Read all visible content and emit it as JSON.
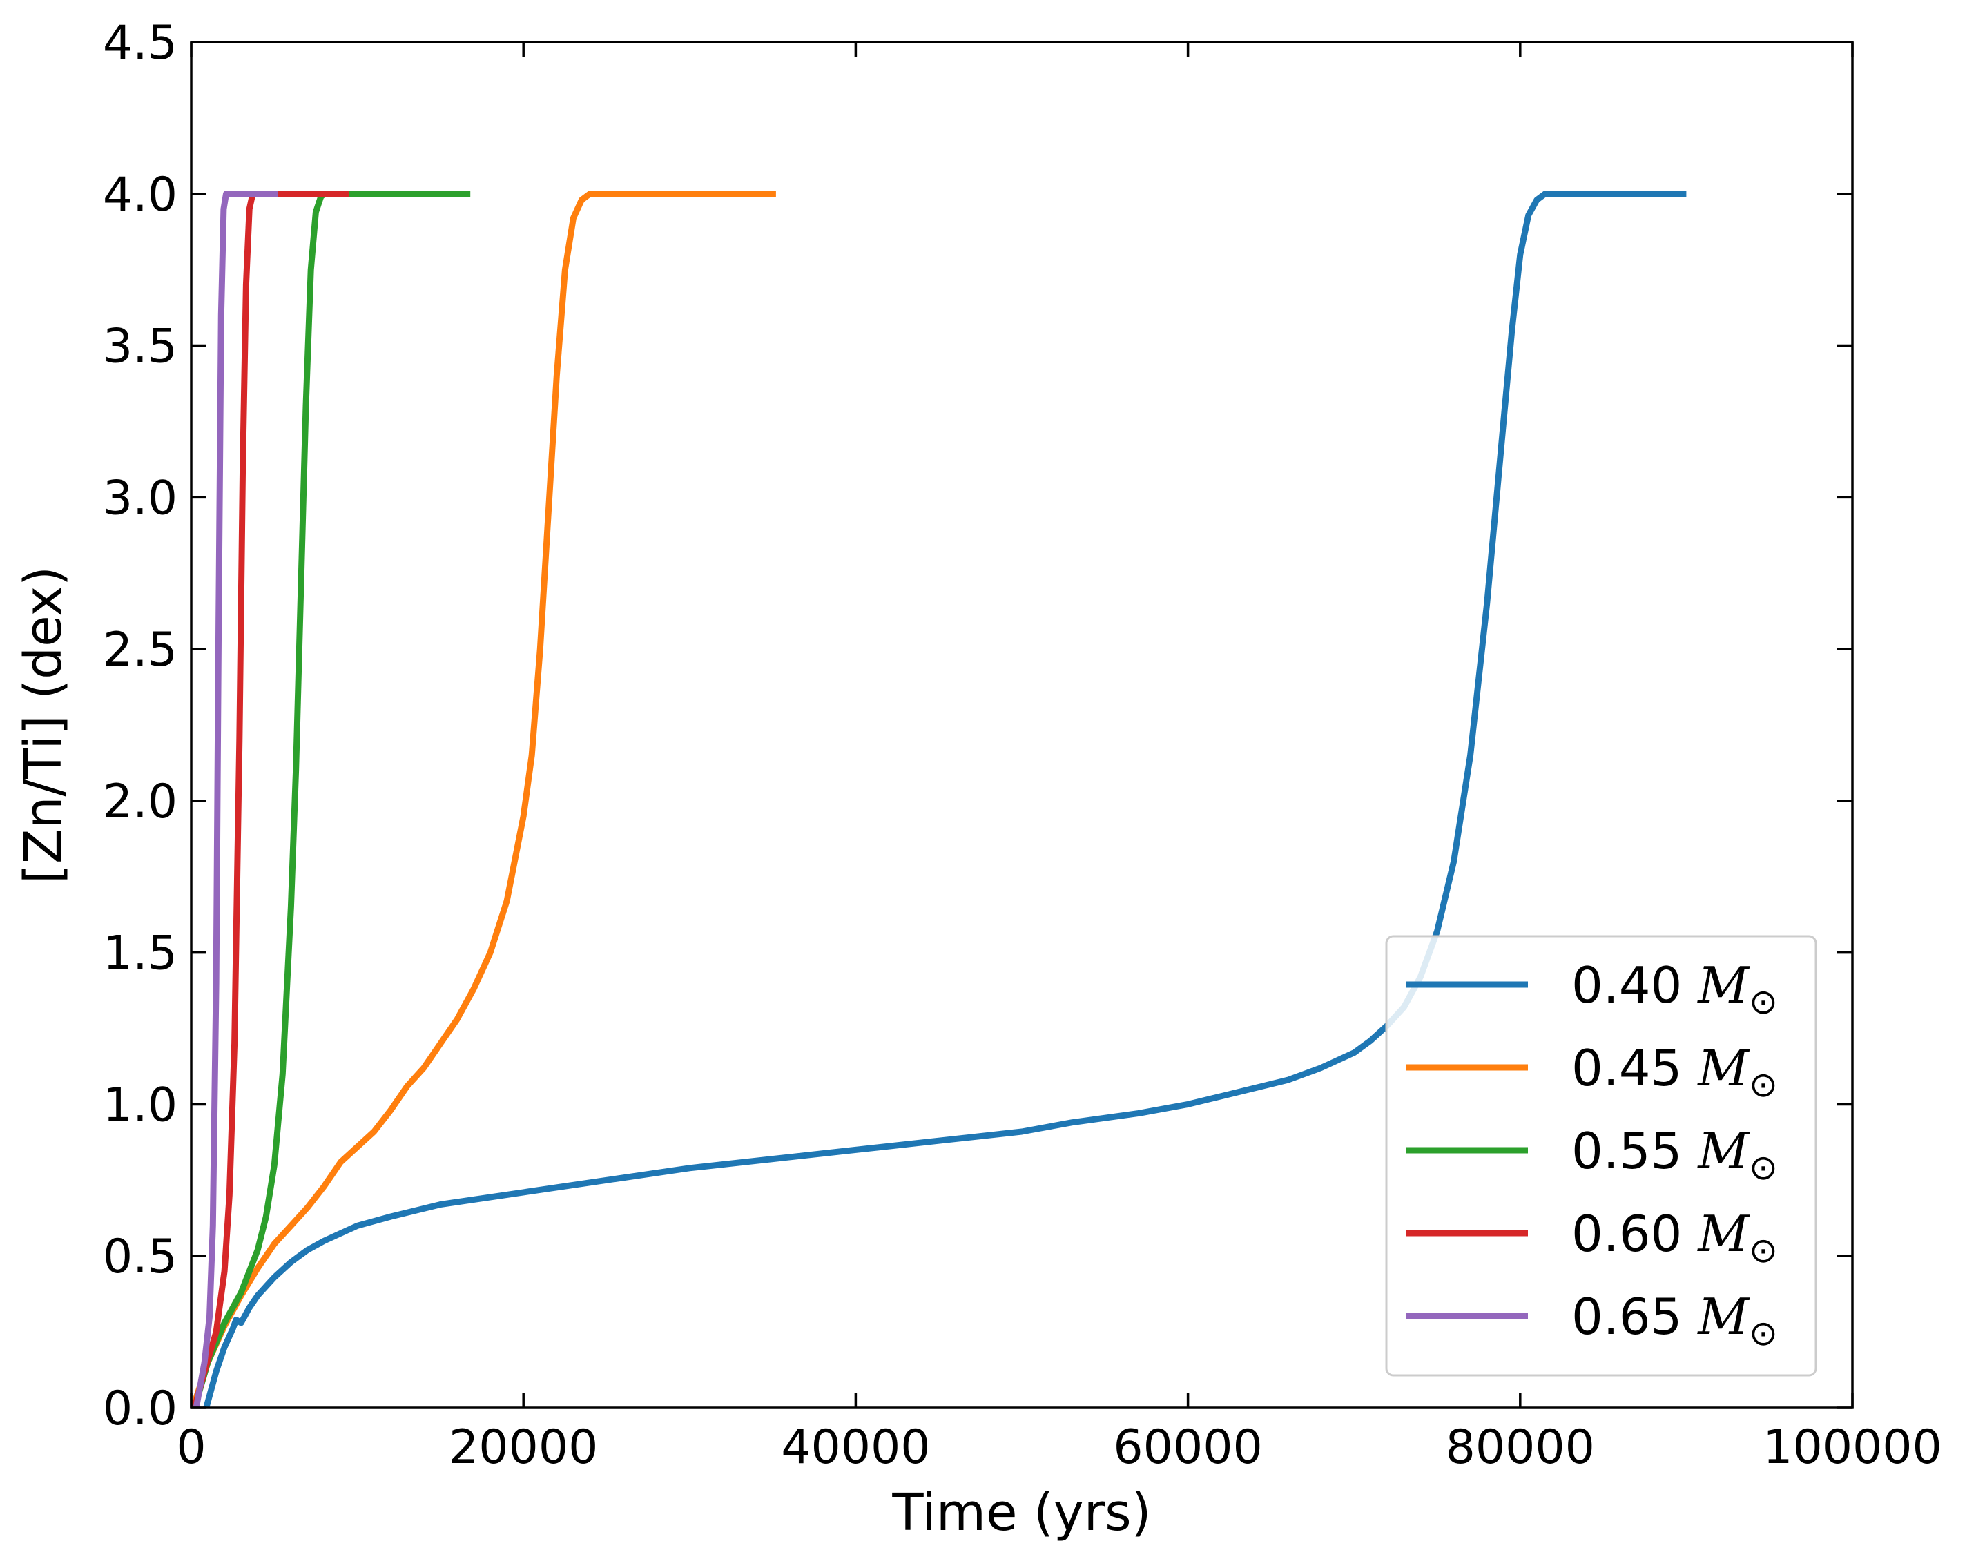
{
  "chart_data": {
    "type": "line",
    "xlabel": "Time (yrs)",
    "ylabel": "[Zn/Ti] (dex)",
    "xlim": [
      0,
      100000
    ],
    "ylim": [
      0,
      4.5
    ],
    "xticks": [
      0,
      20000,
      40000,
      60000,
      80000,
      100000
    ],
    "xtick_labels": [
      "0",
      "20000",
      "40000",
      "60000",
      "80000",
      "100000"
    ],
    "yticks": [
      0,
      0.5,
      1,
      1.5,
      2,
      2.5,
      3,
      3.5,
      4,
      4.5
    ],
    "ytick_labels": [
      "0.0",
      "0.5",
      "1.0",
      "1.5",
      "2.0",
      "2.5",
      "3.0",
      "3.5",
      "4.0",
      "4.5"
    ],
    "grid": false,
    "legend_position": "bottom-right",
    "legend_suffix": "M",
    "legend_subscript": "⊙",
    "series": [
      {
        "name": "0.40",
        "color": "#1f77b4",
        "x": [
          900,
          1500,
          2000,
          2500,
          2700,
          3000,
          3500,
          4000,
          5000,
          6000,
          7000,
          8000,
          10000,
          12000,
          15000,
          20000,
          25000,
          30000,
          35000,
          40000,
          45000,
          50000,
          53000,
          57000,
          60000,
          63000,
          66000,
          68000,
          70000,
          71000,
          72000,
          73000,
          74000,
          75000,
          76000,
          77000,
          78000,
          78500,
          79000,
          79500,
          80000,
          80500,
          81000,
          81500,
          82000,
          82500,
          83000,
          85000,
          90000
        ],
        "y": [
          0.0,
          0.12,
          0.2,
          0.26,
          0.29,
          0.28,
          0.33,
          0.37,
          0.43,
          0.48,
          0.52,
          0.55,
          0.6,
          0.63,
          0.67,
          0.71,
          0.75,
          0.79,
          0.82,
          0.85,
          0.88,
          0.91,
          0.94,
          0.97,
          1.0,
          1.04,
          1.08,
          1.12,
          1.17,
          1.21,
          1.26,
          1.32,
          1.42,
          1.57,
          1.8,
          2.15,
          2.65,
          2.95,
          3.25,
          3.55,
          3.8,
          3.93,
          3.98,
          4.0,
          4.0,
          4.0,
          4.0,
          4.0,
          4.0
        ]
      },
      {
        "name": "0.45",
        "color": "#ff7f0e",
        "x": [
          100,
          1000,
          2000,
          3000,
          4000,
          5000,
          6000,
          7000,
          8000,
          9000,
          10000,
          11000,
          12000,
          13000,
          14000,
          15000,
          16000,
          17000,
          18000,
          19000,
          20000,
          20500,
          21000,
          21500,
          22000,
          22500,
          23000,
          23500,
          24000,
          24500,
          25000,
          26000,
          30000,
          35200
        ],
        "y": [
          0.0,
          0.15,
          0.27,
          0.37,
          0.46,
          0.54,
          0.6,
          0.66,
          0.73,
          0.81,
          0.86,
          0.91,
          0.98,
          1.06,
          1.12,
          1.2,
          1.28,
          1.38,
          1.5,
          1.67,
          1.95,
          2.15,
          2.5,
          2.95,
          3.4,
          3.75,
          3.92,
          3.98,
          4.0,
          4.0,
          4.0,
          4.0,
          4.0,
          4.0
        ]
      },
      {
        "name": "0.55",
        "color": "#2ca02c",
        "x": [
          200,
          1000,
          2000,
          3000,
          3500,
          4000,
          4500,
          5000,
          5500,
          6000,
          6300,
          6600,
          6900,
          7200,
          7500,
          7800,
          8000,
          8500,
          10000,
          13000,
          16800
        ],
        "y": [
          0.0,
          0.15,
          0.28,
          0.38,
          0.45,
          0.52,
          0.63,
          0.8,
          1.1,
          1.65,
          2.1,
          2.7,
          3.3,
          3.75,
          3.94,
          3.99,
          4.0,
          4.0,
          4.0,
          4.0,
          4.0
        ]
      },
      {
        "name": "0.60",
        "color": "#d62728",
        "x": [
          200,
          800,
          1500,
          2000,
          2300,
          2600,
          2900,
          3100,
          3300,
          3500,
          3700,
          4000,
          5000,
          7000,
          9500
        ],
        "y": [
          0.0,
          0.12,
          0.25,
          0.45,
          0.7,
          1.2,
          2.2,
          3.1,
          3.7,
          3.95,
          4.0,
          4.0,
          4.0,
          4.0,
          4.0
        ]
      },
      {
        "name": "0.65",
        "color": "#9467bd",
        "x": [
          300,
          800,
          1100,
          1300,
          1500,
          1650,
          1800,
          1950,
          2100,
          2300,
          3000,
          4000,
          5200
        ],
        "y": [
          0.0,
          0.15,
          0.3,
          0.6,
          1.4,
          2.6,
          3.6,
          3.95,
          4.0,
          4.0,
          4.0,
          4.0,
          4.0
        ]
      }
    ]
  }
}
